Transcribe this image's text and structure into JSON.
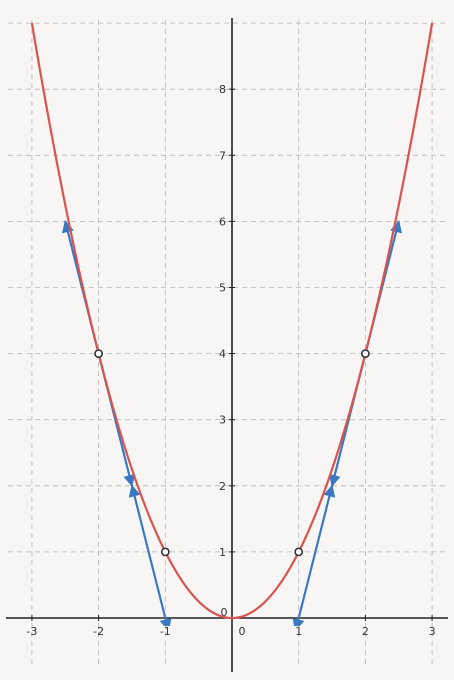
{
  "chart_data": {
    "type": "line",
    "title": "",
    "xlabel": "",
    "ylabel": "",
    "xlim": [
      -3,
      3
    ],
    "ylim": [
      0,
      9
    ],
    "grid": true,
    "x_ticks": [
      "-3",
      "-2",
      "-1",
      "0",
      "1",
      "2",
      "3"
    ],
    "y_ticks": [
      "1",
      "2",
      "3",
      "4",
      "5",
      "6",
      "7",
      "8"
    ],
    "origin_label": "0",
    "series": [
      {
        "kind": "curve",
        "function": "y = x^2",
        "color": "#d9534f",
        "x_range": [
          -3,
          3
        ]
      },
      {
        "kind": "points",
        "color": "#333333",
        "points": [
          {
            "x": -2,
            "y": 4
          },
          {
            "x": -1,
            "y": 1
          },
          {
            "x": 1,
            "y": 1
          },
          {
            "x": 2,
            "y": 4
          }
        ]
      },
      {
        "kind": "secants",
        "color": "#3a78c2",
        "segments": [
          {
            "from": [
              -2.5,
              6
            ],
            "to": [
              -0.5,
              -2
            ]
          },
          {
            "from": [
              -2.5,
              6
            ],
            "to": [
              -1.5,
              2
            ]
          },
          {
            "from": [
              -1.5,
              2
            ],
            "to": [
              -0.5,
              -2
            ]
          },
          {
            "from": [
              0.5,
              -2
            ],
            "to": [
              1.5,
              2
            ]
          },
          {
            "from": [
              1.5,
              2
            ],
            "to": [
              2.5,
              6
            ]
          },
          {
            "from": [
              0.5,
              -2
            ],
            "to": [
              2.5,
              6
            ]
          }
        ]
      }
    ]
  }
}
